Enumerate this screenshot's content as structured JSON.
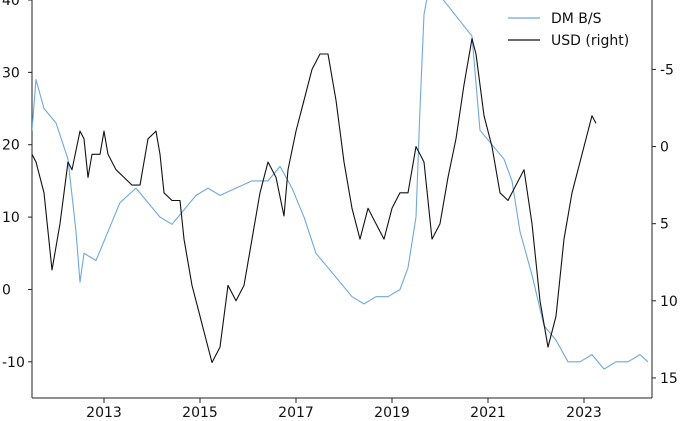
{
  "chart_data": {
    "type": "line",
    "colors": {
      "dm_bs": "#6fa8dc",
      "usd": "#111111",
      "axis": "#222222",
      "background": "#ffffff"
    },
    "legend": {
      "placement": "top-right",
      "entries": [
        "DM B/S",
        "USD (right)"
      ]
    },
    "x_axis": {
      "ticks": [
        "2013",
        "2015",
        "2017",
        "2019",
        "2021",
        "2023"
      ],
      "range": [
        "2012-01",
        "2024-12"
      ]
    },
    "y_left": {
      "ticks": [
        "-10",
        "0",
        "10",
        "20",
        "30",
        "40"
      ],
      "range": [
        -15,
        40
      ]
    },
    "y_right": {
      "ticks": [
        "-5",
        "0",
        "5",
        "10",
        "15"
      ],
      "range": [
        -9.5,
        16.3
      ],
      "inverted": true
    },
    "series": [
      {
        "name": "DM B/S",
        "axis": "left",
        "x": [
          "2012-01",
          "2012-02",
          "2012-04",
          "2012-07",
          "2012-10",
          "2012-12",
          "2013-01",
          "2013-02",
          "2013-05",
          "2013-08",
          "2013-11",
          "2014-03",
          "2014-06",
          "2014-09",
          "2014-12",
          "2015-03",
          "2015-06",
          "2015-09",
          "2015-12",
          "2016-04",
          "2016-08",
          "2016-12",
          "2017-03",
          "2017-06",
          "2017-09",
          "2017-12",
          "2018-03",
          "2018-06",
          "2018-09",
          "2018-12",
          "2019-03",
          "2019-06",
          "2019-09",
          "2019-11",
          "2020-01",
          "2020-02",
          "2020-03",
          "2020-04",
          "2020-05",
          "2021-03",
          "2021-05",
          "2021-08",
          "2021-11",
          "2022-01",
          "2022-03",
          "2022-06",
          "2022-09",
          "2022-12",
          "2023-03",
          "2023-06",
          "2023-09",
          "2023-12",
          "2024-03",
          "2024-06",
          "2024-09",
          "2024-11"
        ],
        "y": [
          22,
          29,
          25,
          23,
          18,
          8,
          1,
          5,
          4,
          8,
          12,
          14,
          12,
          10,
          9,
          11,
          13,
          14,
          13,
          14,
          15,
          15,
          17,
          14,
          10,
          5,
          3,
          1,
          -1,
          -2,
          -1,
          -1,
          0,
          3,
          10,
          25,
          38,
          41,
          42,
          35,
          22,
          20,
          18,
          15,
          8,
          2,
          -5,
          -7,
          -10,
          -10,
          -9,
          -11,
          -10,
          -10,
          -9,
          -10
        ]
      },
      {
        "name": "USD (right)",
        "axis": "right",
        "x": [
          "2012-01",
          "2012-02",
          "2012-04",
          "2012-06",
          "2012-08",
          "2012-10",
          "2012-11",
          "2013-01",
          "2013-02",
          "2013-03",
          "2013-04",
          "2013-05",
          "2013-06",
          "2013-07",
          "2013-08",
          "2013-10",
          "2013-12",
          "2014-02",
          "2014-04",
          "2014-06",
          "2014-08",
          "2014-09",
          "2014-10",
          "2014-12",
          "2015-02",
          "2015-03",
          "2015-05",
          "2015-07",
          "2015-08",
          "2015-10",
          "2015-12",
          "2016-02",
          "2016-04",
          "2016-06",
          "2016-08",
          "2016-10",
          "2016-12",
          "2017-02",
          "2017-04",
          "2017-05",
          "2017-07",
          "2017-09",
          "2017-11",
          "2018-01",
          "2018-03",
          "2018-05",
          "2018-07",
          "2018-09",
          "2018-11",
          "2019-01",
          "2019-03",
          "2019-05",
          "2019-07",
          "2019-09",
          "2019-11",
          "2020-01",
          "2020-03",
          "2020-05",
          "2020-07",
          "2020-09",
          "2020-11",
          "2021-01",
          "2021-03",
          "2021-04",
          "2021-06",
          "2021-08",
          "2021-10",
          "2021-12",
          "2022-02",
          "2022-04",
          "2022-06",
          "2022-08",
          "2022-10",
          "2022-12",
          "2023-02",
          "2023-04",
          "2023-06",
          "2023-08",
          "2023-09",
          "2023-10"
        ],
        "y": [
          0.5,
          1,
          3,
          8,
          5,
          1,
          1.5,
          -1,
          -0.5,
          2,
          0.5,
          0.5,
          0.5,
          -1,
          0.5,
          1.5,
          2,
          2.5,
          2.5,
          -0.5,
          -1,
          0.5,
          3,
          3.5,
          3.5,
          6,
          9,
          11,
          12,
          14,
          13,
          9,
          10,
          9,
          6,
          3,
          1,
          2,
          4.5,
          1.5,
          -1,
          -3,
          -5,
          -6,
          -6,
          -3,
          1,
          4,
          6,
          4,
          5,
          6,
          4,
          3,
          3,
          0,
          1,
          6,
          5,
          2,
          -0.5,
          -4,
          -7,
          -6,
          -2,
          0,
          3,
          3.5,
          2.5,
          1.5,
          5,
          10,
          13,
          11,
          6,
          3,
          1,
          -1,
          -2,
          -1.5
        ]
      }
    ]
  }
}
